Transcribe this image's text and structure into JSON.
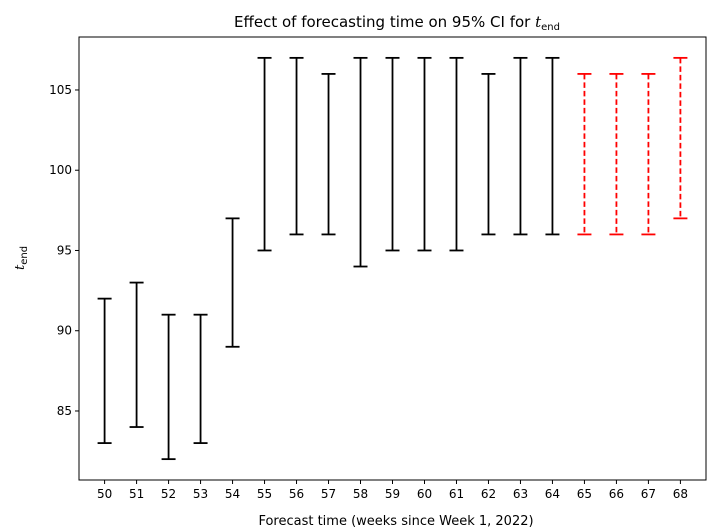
{
  "chart_data": {
    "type": "errorbar",
    "title": "Effect of forecasting time on 95% CI for ",
    "title_math": "t",
    "title_math_sub": "end",
    "xlabel": "Forecast time (weeks since Week 1, 2022)",
    "ylabel": "t",
    "ylabel_sub": "end",
    "xlim": [
      49.2,
      68.8
    ],
    "ylim": [
      80.7,
      108.3
    ],
    "xticks": [
      50,
      51,
      52,
      53,
      54,
      55,
      56,
      57,
      58,
      59,
      60,
      61,
      62,
      63,
      64,
      65,
      66,
      67,
      68
    ],
    "yticks": [
      85,
      90,
      95,
      100,
      105
    ],
    "grid": false,
    "series": [
      {
        "style": "solid",
        "color": "#000000",
        "points": [
          {
            "x": 50,
            "low": 83,
            "high": 92
          },
          {
            "x": 51,
            "low": 84,
            "high": 93
          },
          {
            "x": 52,
            "low": 82,
            "high": 91
          },
          {
            "x": 53,
            "low": 83,
            "high": 91
          },
          {
            "x": 54,
            "low": 89,
            "high": 97
          },
          {
            "x": 55,
            "low": 95,
            "high": 107
          },
          {
            "x": 56,
            "low": 96,
            "high": 107
          },
          {
            "x": 57,
            "low": 96,
            "high": 106
          },
          {
            "x": 58,
            "low": 94,
            "high": 107
          },
          {
            "x": 59,
            "low": 95,
            "high": 107
          },
          {
            "x": 60,
            "low": 95,
            "high": 107
          },
          {
            "x": 61,
            "low": 95,
            "high": 107
          },
          {
            "x": 62,
            "low": 96,
            "high": 106
          },
          {
            "x": 63,
            "low": 96,
            "high": 107
          },
          {
            "x": 64,
            "low": 96,
            "high": 107
          }
        ]
      },
      {
        "style": "dashed",
        "color": "#ff0000",
        "points": [
          {
            "x": 65,
            "low": 96,
            "high": 106
          },
          {
            "x": 66,
            "low": 96,
            "high": 106
          },
          {
            "x": 67,
            "low": 96,
            "high": 106
          },
          {
            "x": 68,
            "low": 97,
            "high": 107
          }
        ]
      }
    ]
  }
}
